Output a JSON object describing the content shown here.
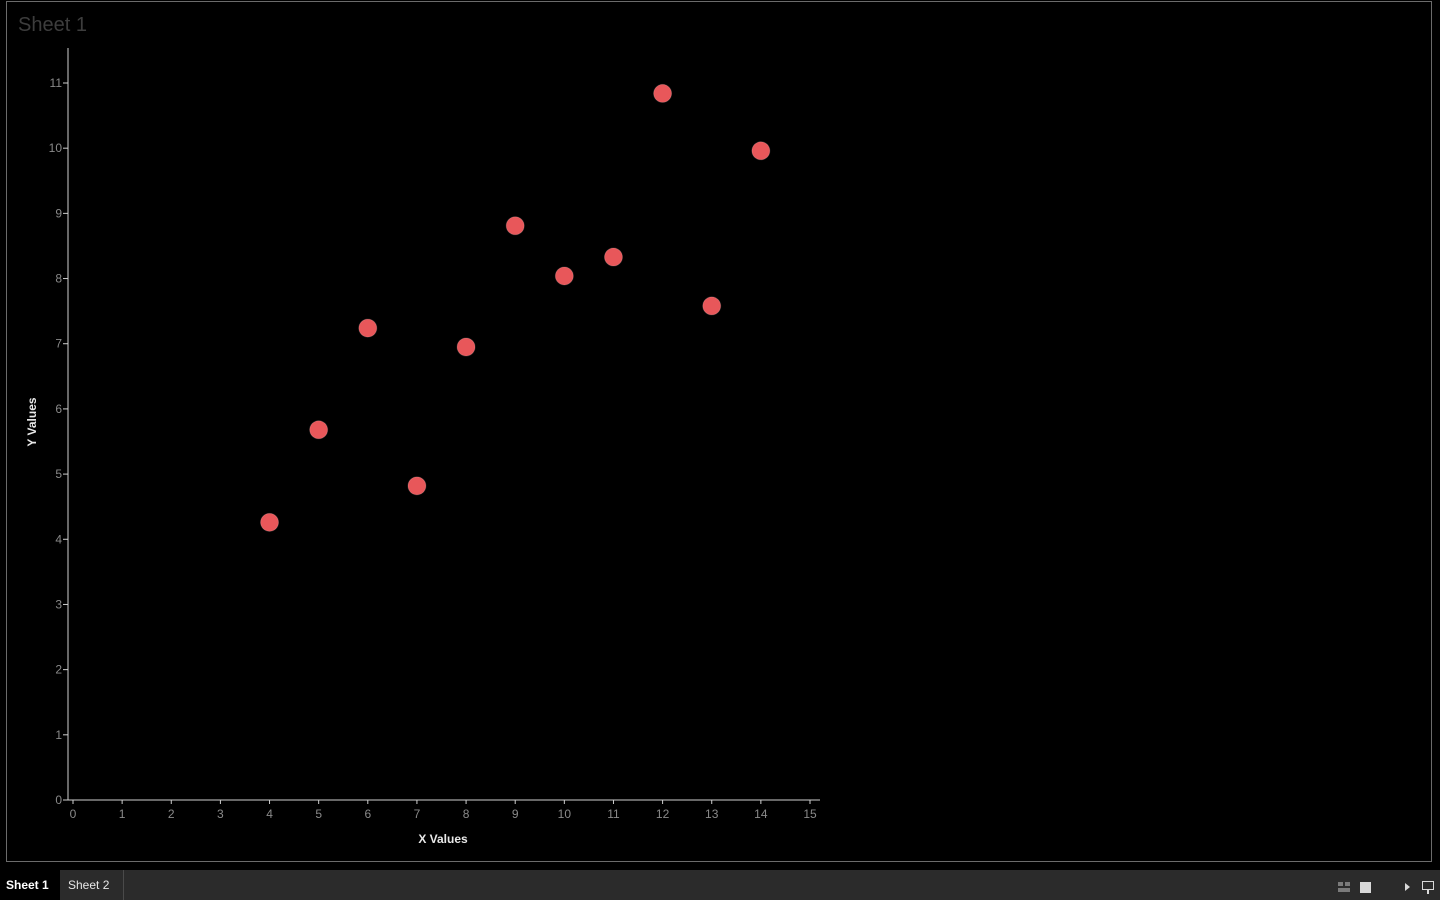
{
  "sheet": {
    "title": "Sheet 1"
  },
  "chart_data": {
    "type": "scatter",
    "title": "",
    "xlabel": "X Values",
    "ylabel": "Y Values",
    "xlim": [
      0,
      15
    ],
    "ylim": [
      0,
      11
    ],
    "x_ticks": [
      0,
      1,
      2,
      3,
      4,
      5,
      6,
      7,
      8,
      9,
      10,
      11,
      12,
      13,
      14,
      15
    ],
    "y_ticks": [
      0,
      1,
      2,
      3,
      4,
      5,
      6,
      7,
      8,
      9,
      10,
      11
    ],
    "grid": false,
    "marker_color": "#e8575a",
    "points": [
      {
        "x": 4,
        "y": 4.26
      },
      {
        "x": 5,
        "y": 5.68
      },
      {
        "x": 6,
        "y": 7.24
      },
      {
        "x": 7,
        "y": 4.82
      },
      {
        "x": 8,
        "y": 6.95
      },
      {
        "x": 9,
        "y": 8.81
      },
      {
        "x": 10,
        "y": 8.04
      },
      {
        "x": 11,
        "y": 8.33
      },
      {
        "x": 12,
        "y": 10.84
      },
      {
        "x": 13,
        "y": 7.58
      },
      {
        "x": 14,
        "y": 9.96
      }
    ]
  },
  "tabs": [
    {
      "label": "Sheet 1",
      "active": true
    },
    {
      "label": "Sheet 2",
      "active": false
    }
  ],
  "toolbar": {
    "icons": [
      "grid-view-icon",
      "single-view-icon",
      "play-icon",
      "presentation-mode-icon"
    ]
  }
}
